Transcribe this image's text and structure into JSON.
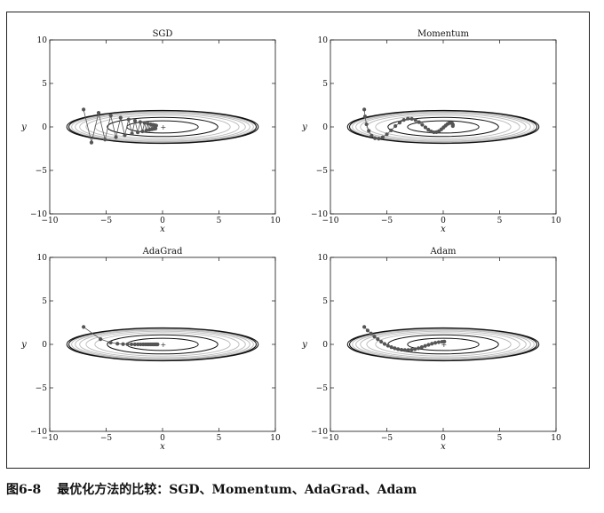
{
  "caption": {
    "label": "图6-8",
    "text": "最优化方法的比较：SGD、Momentum、AdaGrad、Adam"
  },
  "colors": {
    "path": "#555555",
    "contour_dark": "#111111",
    "contour_light": "#bbbbbb",
    "frame": "#222222"
  },
  "chart_data": [
    {
      "type": "line",
      "title": "SGD",
      "xlabel": "x",
      "ylabel": "y",
      "xlim": [
        -10,
        10
      ],
      "ylim": [
        -10,
        10
      ],
      "xticks": [
        -10,
        -5,
        0,
        5,
        10
      ],
      "yticks": [
        -10,
        -5,
        0,
        5,
        10
      ],
      "contours": "f(x,y) = x^2/20 + y^2",
      "series": [
        {
          "x": [
            -7.0,
            -6.3,
            -5.67,
            -5.1,
            -4.59,
            -4.13,
            -3.72,
            -3.35,
            -3.01,
            -2.71,
            -2.44,
            -2.2,
            -1.98,
            -1.78,
            -1.6,
            -1.44,
            -1.3,
            -1.17,
            -1.05,
            -0.95,
            -0.85,
            -0.77,
            -0.69,
            -0.62,
            -0.56
          ],
          "y": [
            2.0,
            -1.8,
            1.62,
            -1.46,
            1.31,
            -1.18,
            1.06,
            -0.96,
            0.86,
            -0.77,
            0.7,
            -0.63,
            0.56,
            -0.51,
            0.46,
            -0.41,
            0.37,
            -0.33,
            0.3,
            -0.27,
            0.24,
            -0.22,
            0.2,
            -0.18,
            0.16
          ]
        }
      ]
    },
    {
      "type": "line",
      "title": "Momentum",
      "xlabel": "x",
      "ylabel": "y",
      "xlim": [
        -10,
        10
      ],
      "ylim": [
        -10,
        10
      ],
      "xticks": [
        -10,
        -5,
        0,
        5,
        10
      ],
      "yticks": [
        -10,
        -5,
        0,
        5,
        10
      ],
      "contours": "f(x,y) = x^2/20 + y^2",
      "series": [
        {
          "x": [
            -7.0,
            -6.93,
            -6.8,
            -6.6,
            -6.35,
            -6.05,
            -5.72,
            -5.37,
            -5.0,
            -4.62,
            -4.24,
            -3.86,
            -3.49,
            -3.13,
            -2.79,
            -2.46,
            -2.15,
            -1.86,
            -1.58,
            -1.32,
            -1.07,
            -0.83,
            -0.6,
            -0.38,
            -0.17,
            0.03,
            0.22,
            0.39,
            0.55,
            0.69,
            0.8,
            0.86,
            0.85
          ],
          "y": [
            2.0,
            1.2,
            0.3,
            -0.45,
            -1.0,
            -1.3,
            -1.35,
            -1.2,
            -0.85,
            -0.4,
            0.1,
            0.5,
            0.8,
            0.95,
            0.93,
            0.78,
            0.55,
            0.25,
            -0.05,
            -0.32,
            -0.52,
            -0.62,
            -0.6,
            -0.48,
            -0.28,
            -0.05,
            0.17,
            0.34,
            0.45,
            0.47,
            0.4,
            0.25,
            0.1
          ]
        }
      ]
    },
    {
      "type": "line",
      "title": "AdaGrad",
      "xlabel": "x",
      "ylabel": "y",
      "xlim": [
        -10,
        10
      ],
      "ylim": [
        -10,
        10
      ],
      "xticks": [
        -10,
        -5,
        0,
        5,
        10
      ],
      "yticks": [
        -10,
        -5,
        0,
        5,
        10
      ],
      "contours": "f(x,y) = x^2/20 + y^2",
      "series": [
        {
          "x": [
            -7.0,
            -5.5,
            -4.6,
            -4.0,
            -3.5,
            -3.1,
            -2.75,
            -2.45,
            -2.18,
            -1.94,
            -1.72,
            -1.53,
            -1.36,
            -1.21,
            -1.07,
            -0.95,
            -0.84,
            -0.74,
            -0.65,
            -0.57,
            -0.5,
            -0.44
          ],
          "y": [
            2.0,
            0.6,
            0.2,
            0.08,
            0.03,
            0.01,
            0.005,
            0,
            0,
            0,
            0,
            0,
            0,
            0,
            0,
            0,
            0,
            0,
            0,
            0,
            0,
            0
          ]
        }
      ]
    },
    {
      "type": "line",
      "title": "Adam",
      "xlabel": "x",
      "ylabel": "y",
      "xlim": [
        -10,
        10
      ],
      "ylim": [
        -10,
        10
      ],
      "xticks": [
        -10,
        -5,
        0,
        5,
        10
      ],
      "yticks": [
        -10,
        -5,
        0,
        5,
        10
      ],
      "contours": "f(x,y) = x^2/20 + y^2",
      "series": [
        {
          "x": [
            -7.0,
            -6.7,
            -6.4,
            -6.1,
            -5.8,
            -5.5,
            -5.2,
            -4.9,
            -4.6,
            -4.3,
            -4.0,
            -3.7,
            -3.4,
            -3.1,
            -2.8,
            -2.5,
            -2.2,
            -1.9,
            -1.6,
            -1.3,
            -1.0,
            -0.7,
            -0.4,
            -0.1,
            0.1
          ],
          "y": [
            2.0,
            1.6,
            1.25,
            0.9,
            0.6,
            0.3,
            0.05,
            -0.15,
            -0.32,
            -0.45,
            -0.55,
            -0.62,
            -0.65,
            -0.65,
            -0.62,
            -0.55,
            -0.45,
            -0.32,
            -0.18,
            -0.05,
            0.08,
            0.18,
            0.25,
            0.3,
            0.32
          ]
        }
      ]
    }
  ]
}
